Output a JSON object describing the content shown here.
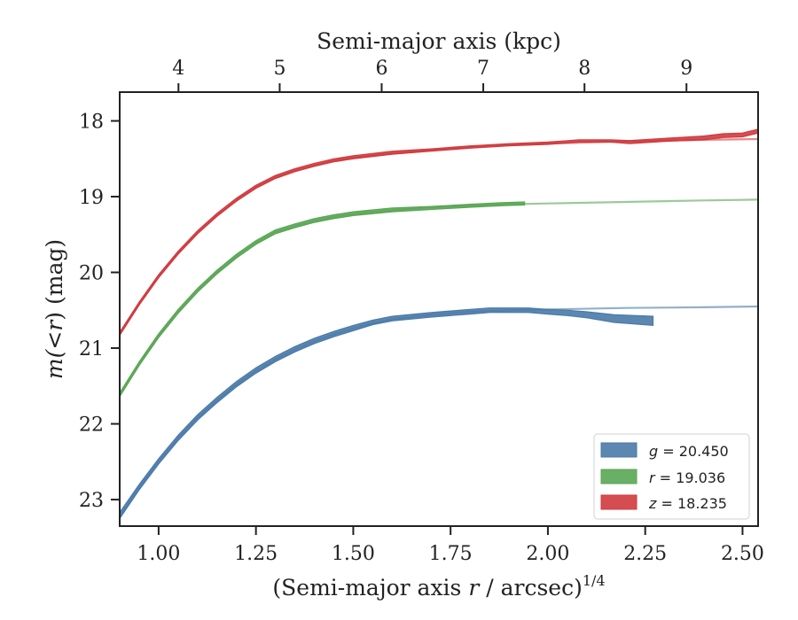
{
  "chart_data": {
    "type": "line",
    "xlabel_main": "(Semi-major axis ",
    "xlabel_var": "r",
    "xlabel_unit": " / arcsec)",
    "xlabel_sup": "1/4",
    "x2label": "Semi-major axis (kpc)",
    "ylabel_var": "m",
    "ylabel_mid": "(<",
    "ylabel_var2": "r",
    "ylabel_end": ") (mag)",
    "xlim": [
      0.9,
      2.54
    ],
    "ylim": [
      23.35,
      17.62
    ],
    "xticks": [
      1.0,
      1.25,
      1.5,
      1.75,
      2.0,
      2.25,
      2.5
    ],
    "xtick_labels": [
      "1.00",
      "1.25",
      "1.50",
      "1.75",
      "2.00",
      "2.25",
      "2.50"
    ],
    "yticks": [
      18,
      19,
      20,
      21,
      22,
      23
    ],
    "ytick_labels": [
      "18",
      "19",
      "20",
      "21",
      "22",
      "23"
    ],
    "x2ticks": [
      4,
      5,
      6,
      7,
      8,
      9
    ],
    "x2tick_labels": [
      "4",
      "5",
      "6",
      "7",
      "8",
      "9"
    ],
    "x2_to_x": [
      [
        4,
        1.051
      ],
      [
        5,
        1.311
      ],
      [
        6,
        1.573
      ],
      [
        7,
        1.834
      ],
      [
        8,
        2.094
      ],
      [
        9,
        2.356
      ]
    ],
    "legend_position": "lower-right",
    "grid": false,
    "series": [
      {
        "name": "g = 20.450",
        "band": "g",
        "total": "20.450",
        "color": "#4a7aa8",
        "model": [
          [
            0.9,
            23.22
          ],
          [
            0.95,
            22.84
          ],
          [
            1.0,
            22.5
          ],
          [
            1.05,
            22.19
          ],
          [
            1.1,
            21.92
          ],
          [
            1.15,
            21.69
          ],
          [
            1.2,
            21.48
          ],
          [
            1.25,
            21.3
          ],
          [
            1.3,
            21.15
          ],
          [
            1.35,
            21.02
          ],
          [
            1.4,
            20.91
          ],
          [
            1.45,
            20.82
          ],
          [
            1.5,
            20.74
          ],
          [
            1.55,
            20.67
          ],
          [
            1.6,
            20.62
          ],
          [
            1.7,
            20.56
          ],
          [
            1.8,
            20.52
          ],
          [
            1.9,
            20.5
          ],
          [
            2.0,
            20.49
          ],
          [
            2.2,
            20.47
          ],
          [
            2.4,
            20.46
          ],
          [
            2.54,
            20.45
          ]
        ],
        "data_upper": [
          [
            0.9,
            23.17
          ],
          [
            0.95,
            22.8
          ],
          [
            1.0,
            22.46
          ],
          [
            1.05,
            22.15
          ],
          [
            1.1,
            21.88
          ],
          [
            1.15,
            21.65
          ],
          [
            1.2,
            21.44
          ],
          [
            1.25,
            21.26
          ],
          [
            1.3,
            21.11
          ],
          [
            1.35,
            20.98
          ],
          [
            1.4,
            20.87
          ],
          [
            1.45,
            20.78
          ],
          [
            1.5,
            20.7
          ],
          [
            1.55,
            20.63
          ],
          [
            1.6,
            20.58
          ],
          [
            1.7,
            20.53
          ],
          [
            1.8,
            20.49
          ],
          [
            1.85,
            20.47
          ],
          [
            1.95,
            20.47
          ],
          [
            2.0,
            20.49
          ],
          [
            2.05,
            20.5
          ],
          [
            2.1,
            20.52
          ],
          [
            2.17,
            20.56
          ],
          [
            2.27,
            20.58
          ]
        ],
        "data_lower": [
          [
            2.27,
            20.7
          ],
          [
            2.17,
            20.66
          ],
          [
            2.1,
            20.6
          ],
          [
            2.05,
            20.57
          ],
          [
            2.0,
            20.55
          ],
          [
            1.95,
            20.53
          ],
          [
            1.85,
            20.53
          ],
          [
            1.8,
            20.55
          ],
          [
            1.7,
            20.59
          ],
          [
            1.6,
            20.64
          ],
          [
            1.55,
            20.69
          ],
          [
            1.5,
            20.77
          ],
          [
            1.45,
            20.85
          ],
          [
            1.4,
            20.94
          ],
          [
            1.35,
            21.05
          ],
          [
            1.3,
            21.18
          ],
          [
            1.25,
            21.33
          ],
          [
            1.2,
            21.51
          ],
          [
            1.15,
            21.72
          ],
          [
            1.1,
            21.95
          ],
          [
            1.05,
            22.22
          ],
          [
            1.0,
            22.53
          ],
          [
            0.95,
            22.87
          ],
          [
            0.9,
            23.25
          ]
        ]
      },
      {
        "name": "r = 19.036",
        "band": "r",
        "total": "19.036",
        "color": "#5aa655",
        "model": [
          [
            0.9,
            21.62
          ],
          [
            0.95,
            21.21
          ],
          [
            1.0,
            20.84
          ],
          [
            1.05,
            20.52
          ],
          [
            1.1,
            20.24
          ],
          [
            1.15,
            20.0
          ],
          [
            1.2,
            19.79
          ],
          [
            1.25,
            19.61
          ],
          [
            1.3,
            19.47
          ],
          [
            1.35,
            19.39
          ],
          [
            1.4,
            19.32
          ],
          [
            1.45,
            19.27
          ],
          [
            1.5,
            19.23
          ],
          [
            1.6,
            19.18
          ],
          [
            1.7,
            19.14
          ],
          [
            1.8,
            19.12
          ],
          [
            1.9,
            19.1
          ],
          [
            2.0,
            19.09
          ],
          [
            2.2,
            19.07
          ],
          [
            2.4,
            19.05
          ],
          [
            2.54,
            19.04
          ]
        ],
        "data_upper": [
          [
            0.9,
            21.59
          ],
          [
            0.95,
            21.18
          ],
          [
            1.0,
            20.81
          ],
          [
            1.05,
            20.49
          ],
          [
            1.1,
            20.21
          ],
          [
            1.15,
            19.97
          ],
          [
            1.2,
            19.76
          ],
          [
            1.25,
            19.58
          ],
          [
            1.3,
            19.44
          ],
          [
            1.35,
            19.36
          ],
          [
            1.4,
            19.29
          ],
          [
            1.45,
            19.24
          ],
          [
            1.5,
            19.2
          ],
          [
            1.6,
            19.15
          ],
          [
            1.7,
            19.13
          ],
          [
            1.8,
            19.1
          ],
          [
            1.88,
            19.08
          ],
          [
            1.94,
            19.07
          ]
        ],
        "data_lower": [
          [
            1.94,
            19.11
          ],
          [
            1.88,
            19.12
          ],
          [
            1.8,
            19.14
          ],
          [
            1.7,
            19.17
          ],
          [
            1.6,
            19.2
          ],
          [
            1.5,
            19.25
          ],
          [
            1.45,
            19.29
          ],
          [
            1.4,
            19.34
          ],
          [
            1.35,
            19.41
          ],
          [
            1.3,
            19.49
          ],
          [
            1.25,
            19.63
          ],
          [
            1.2,
            19.81
          ],
          [
            1.15,
            20.02
          ],
          [
            1.1,
            20.26
          ],
          [
            1.05,
            20.54
          ],
          [
            1.0,
            20.86
          ],
          [
            0.95,
            21.23
          ],
          [
            0.9,
            21.64
          ]
        ]
      },
      {
        "name": "z = 18.235",
        "band": "z",
        "total": "18.235",
        "color": "#d03a3e",
        "model": [
          [
            0.9,
            20.82
          ],
          [
            0.95,
            20.42
          ],
          [
            1.0,
            20.06
          ],
          [
            1.05,
            19.75
          ],
          [
            1.1,
            19.48
          ],
          [
            1.15,
            19.25
          ],
          [
            1.2,
            19.05
          ],
          [
            1.25,
            18.88
          ],
          [
            1.3,
            18.75
          ],
          [
            1.35,
            18.66
          ],
          [
            1.4,
            18.59
          ],
          [
            1.45,
            18.53
          ],
          [
            1.5,
            18.49
          ],
          [
            1.6,
            18.43
          ],
          [
            1.7,
            18.39
          ],
          [
            1.8,
            18.35
          ],
          [
            1.9,
            18.32
          ],
          [
            2.0,
            18.3
          ],
          [
            2.2,
            18.27
          ],
          [
            2.4,
            18.25
          ],
          [
            2.54,
            18.24
          ]
        ],
        "data_upper": [
          [
            0.9,
            20.79
          ],
          [
            0.95,
            20.39
          ],
          [
            1.0,
            20.03
          ],
          [
            1.05,
            19.72
          ],
          [
            1.1,
            19.45
          ],
          [
            1.15,
            19.22
          ],
          [
            1.2,
            19.02
          ],
          [
            1.25,
            18.85
          ],
          [
            1.3,
            18.72
          ],
          [
            1.35,
            18.63
          ],
          [
            1.4,
            18.56
          ],
          [
            1.45,
            18.5
          ],
          [
            1.5,
            18.46
          ],
          [
            1.6,
            18.4
          ],
          [
            1.7,
            18.37
          ],
          [
            1.8,
            18.33
          ],
          [
            1.9,
            18.3
          ],
          [
            2.0,
            18.28
          ],
          [
            2.08,
            18.25
          ],
          [
            2.16,
            18.25
          ],
          [
            2.21,
            18.26
          ],
          [
            2.3,
            18.23
          ],
          [
            2.4,
            18.2
          ],
          [
            2.45,
            18.17
          ],
          [
            2.5,
            18.16
          ],
          [
            2.54,
            18.11
          ]
        ],
        "data_lower": [
          [
            2.54,
            18.16
          ],
          [
            2.5,
            18.21
          ],
          [
            2.45,
            18.22
          ],
          [
            2.4,
            18.25
          ],
          [
            2.3,
            18.27
          ],
          [
            2.21,
            18.3
          ],
          [
            2.16,
            18.28
          ],
          [
            2.08,
            18.28
          ],
          [
            2.0,
            18.31
          ],
          [
            1.9,
            18.33
          ],
          [
            1.8,
            18.36
          ],
          [
            1.7,
            18.4
          ],
          [
            1.6,
            18.44
          ],
          [
            1.5,
            18.5
          ],
          [
            1.45,
            18.54
          ],
          [
            1.4,
            18.6
          ],
          [
            1.35,
            18.67
          ],
          [
            1.3,
            18.76
          ],
          [
            1.25,
            18.89
          ],
          [
            1.2,
            19.06
          ],
          [
            1.15,
            19.26
          ],
          [
            1.1,
            19.49
          ],
          [
            1.05,
            19.76
          ],
          [
            1.0,
            20.07
          ],
          [
            0.95,
            20.43
          ],
          [
            0.9,
            20.83
          ]
        ]
      }
    ]
  }
}
